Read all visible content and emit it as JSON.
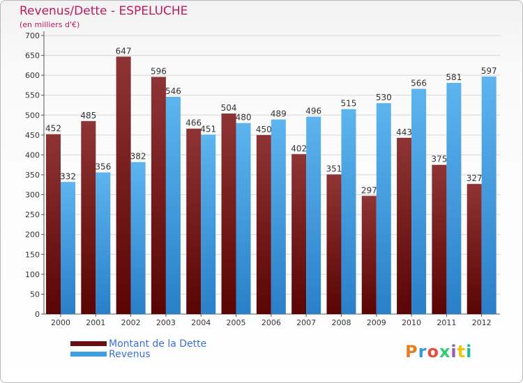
{
  "header": {
    "title": "Revenus/Dette - ESPELUCHE",
    "subtitle": "(en milliers d'€)"
  },
  "legend": {
    "items": [
      {
        "label": "Montant de la Dette",
        "color": "#6a0f0f"
      },
      {
        "label": "Revenus",
        "color": "#3e9ee0"
      }
    ]
  },
  "logo": {
    "text": "Proxiti"
  },
  "chart_data": {
    "type": "bar",
    "categories": [
      "2000",
      "2001",
      "2002",
      "2003",
      "2004",
      "2005",
      "2006",
      "2007",
      "2008",
      "2009",
      "2010",
      "2011",
      "2012"
    ],
    "series": [
      {
        "name": "Montant de la Dette",
        "values": [
          452,
          485,
          647,
          596,
          466,
          504,
          450,
          402,
          351,
          297,
          443,
          375,
          327
        ],
        "color": "#6a0f0f"
      },
      {
        "name": "Revenus",
        "values": [
          332,
          356,
          382,
          546,
          451,
          480,
          489,
          496,
          515,
          530,
          566,
          581,
          597
        ],
        "color": "#3e9ee0"
      }
    ],
    "title": "Revenus/Dette - ESPELUCHE",
    "ylabel": "(en milliers d'€)",
    "ylim": [
      0,
      700
    ],
    "yticks": [
      "0",
      "50",
      "100",
      "150",
      "200",
      "250",
      "300",
      "350",
      "400",
      "450",
      "500",
      "550",
      "600",
      "650",
      "700"
    ],
    "grid": true
  }
}
